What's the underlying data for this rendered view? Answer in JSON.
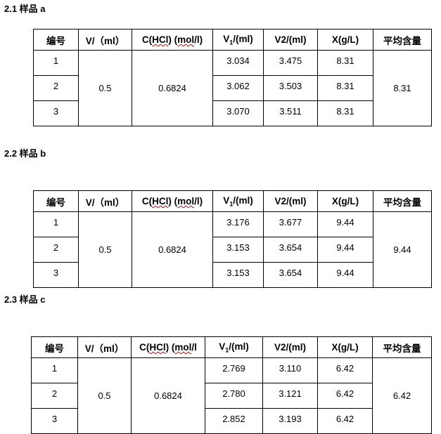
{
  "sections": [
    {
      "title": "2.1 样品 a",
      "v": "0.5",
      "c": "0.6824",
      "avg": "8.31",
      "rows": [
        [
          "1",
          "3.034",
          "3.475",
          "8.31"
        ],
        [
          "2",
          "3.062",
          "3.503",
          "8.31"
        ],
        [
          "3",
          "3.070",
          "3.511",
          "8.31"
        ]
      ]
    },
    {
      "title": "2.2 样品 b",
      "v": "0.5",
      "c": "0.6824",
      "avg": "9.44",
      "rows": [
        [
          "1",
          "3.176",
          "3.677",
          "9.44"
        ],
        [
          "2",
          "3.153",
          "3.654",
          "9.44"
        ],
        [
          "3",
          "3.153",
          "3.654",
          "9.44"
        ]
      ]
    },
    {
      "title": "2.3 样品 c",
      "v": "0.5",
      "c": "0.6824",
      "avg": "6.42",
      "rows": [
        [
          "1",
          "2.769",
          "3.110",
          "6.42"
        ],
        [
          "2",
          "2.780",
          "3.121",
          "6.42"
        ],
        [
          "3",
          "2.852",
          "3.193",
          "6.42"
        ]
      ]
    }
  ],
  "headers": {
    "no": "编号",
    "v": "V/（ml）",
    "c_pre": "C(",
    "c_hcl": "HCl",
    ") ": ") ",
    "c_mol": "mol",
    "c_post": "/l)",
    "c_post_c": "/l",
    "v1_pre": "V",
    "v1_sub": "1",
    "v1_post": "/(ml)",
    "v2": "V2/(ml)",
    "x": "X(g/L)",
    "avg": "平均含量"
  }
}
